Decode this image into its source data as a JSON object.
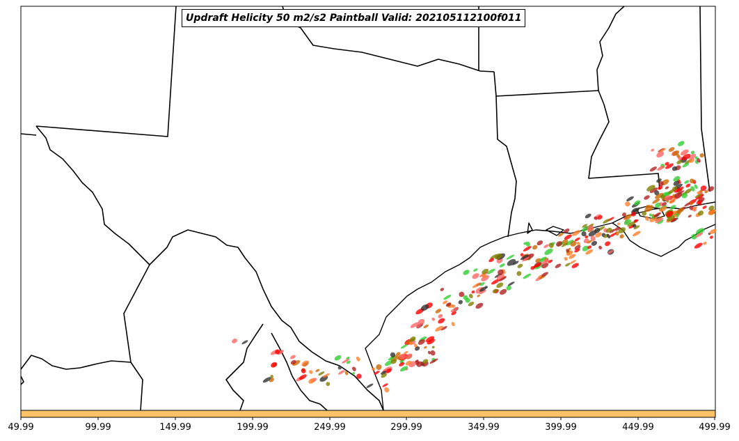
{
  "title": "Updraft Helicity 50 m2/s2 Paintball Valid: 202105112100f011",
  "colorbar": {
    "color": "#ffc266",
    "ticks": [
      "49.99",
      "99.99",
      "149.99",
      "199.99",
      "249.99",
      "299.99",
      "349.99",
      "399.99",
      "449.99",
      "499.99"
    ]
  },
  "paintball_colors": [
    "#ff0000",
    "#ff7f2a",
    "#b22222",
    "#32cd32",
    "#808000",
    "#333333",
    "#ff6666",
    "#cc6600"
  ]
}
